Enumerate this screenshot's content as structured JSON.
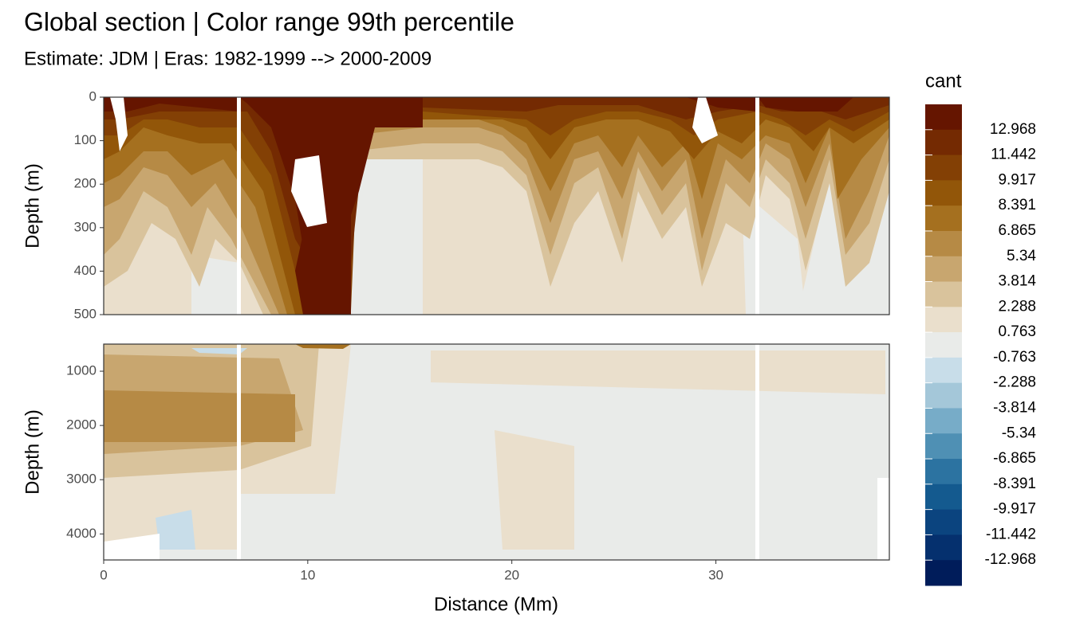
{
  "chart_data": {
    "type": "contour",
    "title": "Global section | Color range 99th percentile",
    "subtitle": "Estimate: JDM  | Eras: 1982-1999 --> 2000-2009",
    "x_label": "Distance (Mm)",
    "xlim": [
      0,
      38.5
    ],
    "xticks": [
      0,
      10,
      20,
      30
    ],
    "y_inverted": true,
    "grid": true,
    "panels": [
      {
        "y_label": "Depth (m)",
        "ylim": [
          0,
          500
        ],
        "yticks": [
          0,
          100,
          200,
          300,
          400,
          500
        ]
      },
      {
        "y_label": "Depth (m)",
        "ylim": [
          500,
          4480
        ],
        "yticks": [
          1000,
          2000,
          3000,
          4000
        ]
      }
    ],
    "legend": {
      "title": "cant",
      "breaks": [
        12.968,
        11.442,
        9.917,
        8.391,
        6.865,
        5.34,
        3.814,
        2.288,
        0.763,
        -0.763,
        -2.288,
        -3.814,
        -5.34,
        -6.865,
        -8.391,
        -9.917,
        -11.442,
        -12.968
      ],
      "colors": [
        "#651500",
        "#742a02",
        "#834005",
        "#925609",
        "#a5701f",
        "#b68a45",
        "#c8a66f",
        "#d9c39c",
        "#eadfcc",
        "#e9ebe9",
        "#c8dde9",
        "#a4c7d9",
        "#77acc8",
        "#4f90b4",
        "#2c73a1",
        "#145a8f",
        "#0b447f",
        "#05306e",
        "#001c5a"
      ]
    }
  }
}
